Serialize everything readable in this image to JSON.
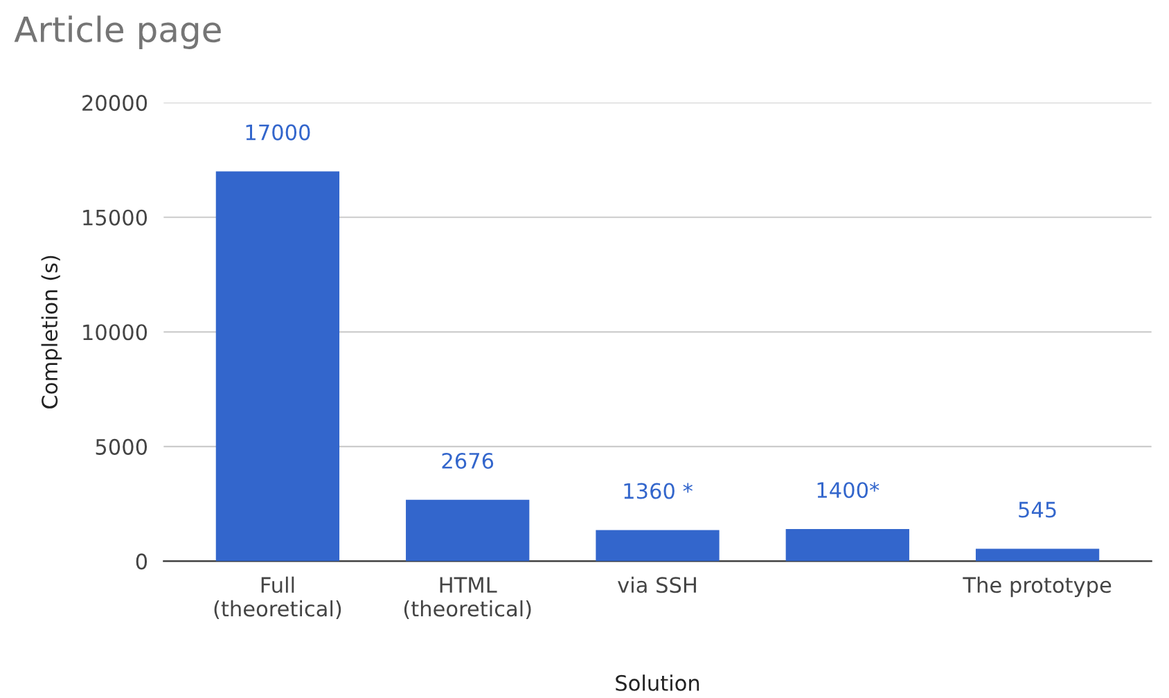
{
  "chart_data": {
    "type": "bar",
    "title": "Article page",
    "xlabel": "Solution",
    "ylabel": "Completion (s)",
    "categories": [
      "Full\n(theoretical)",
      "HTML\n(theoretical)",
      "via SSH",
      null,
      "The prototype"
    ],
    "values": [
      17000,
      2676,
      1360,
      1400,
      545
    ],
    "value_labels": [
      "17000",
      "2676",
      "1360 *",
      "1400*",
      "545"
    ],
    "color": "#3366cc",
    "ylim": [
      0,
      20000
    ],
    "yticks": [
      0,
      5000,
      10000,
      15000,
      20000
    ],
    "grid": "y"
  }
}
